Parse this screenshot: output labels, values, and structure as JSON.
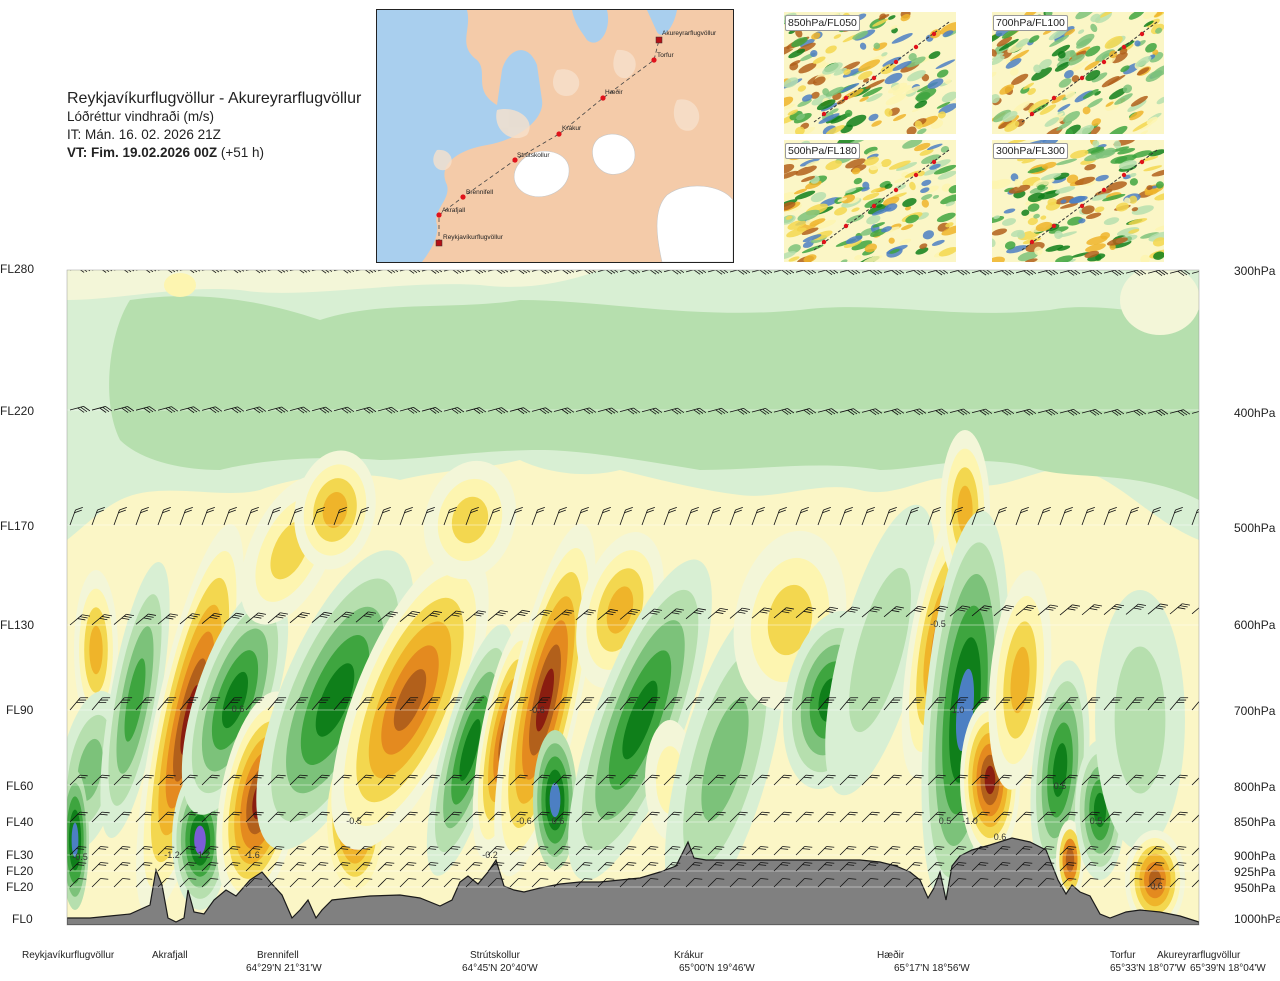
{
  "title": {
    "route": "Reykjavíkurflugvöllur - Akureyrarflugvöllur",
    "variable": "Lóðréttur vindhraði (m/s)",
    "issued": "IT: Mán. 16. 02. 2026 21Z",
    "valid_bold": "VT: Fim. 19.02.2026 00Z",
    "valid_offset": " (+51 h)"
  },
  "map": {
    "places": [
      "Akureyrarflugvöllur",
      "Torfur",
      "Hæðir",
      "Krákur",
      "Strútskollur",
      "Brennifell",
      "Akrafjall",
      "Reykjavíkurflugvöllur"
    ],
    "colors": {
      "sea": "#a8cfee",
      "land": "#f2c9a6",
      "glacier": "#ffffff",
      "route": "#444444",
      "point": "#e0121b"
    }
  },
  "mini_maps": [
    {
      "label": "850hPa/FL050"
    },
    {
      "label": "700hPa/FL100"
    },
    {
      "label": "500hPa/FL180"
    },
    {
      "label": "300hPa/FL300"
    }
  ],
  "axes": {
    "left_fl": [
      "FL280",
      "FL220",
      "FL170",
      "FL130",
      "FL90",
      "FL60",
      "FL40",
      "FL30",
      "FL20",
      "FL20",
      "FL0"
    ],
    "right_hpa": [
      "300hPa",
      "400hPa",
      "500hPa",
      "600hPa",
      "700hPa",
      "800hPa",
      "850hPa",
      "900hPa",
      "925hPa",
      "950hPa",
      "1000hPa"
    ]
  },
  "locations": [
    {
      "name": "Reykjavíkurflugvöllur",
      "coord": ""
    },
    {
      "name": "Akrafjall",
      "coord": ""
    },
    {
      "name": "Brennifell",
      "coord": "64°29'N 21°31'W"
    },
    {
      "name": "Strútskollur",
      "coord": "64°45'N 20°40'W"
    },
    {
      "name": "Krákur",
      "coord": "65°00'N 19°46'W"
    },
    {
      "name": "Hæðir",
      "coord": "65°17'N 18°56'W"
    },
    {
      "name": "Torfur",
      "coord": "65°33'N 18°07'W"
    },
    {
      "name": "Akureyrarflugvöllur",
      "coord": "65°39'N 18°04'W"
    }
  ],
  "contour_labels": [
    "-1.2",
    "1.2",
    "-1.6",
    "-0.5",
    "-0.6",
    "0.6",
    "-0.6",
    "0.6",
    "-0.2",
    "-0.5",
    "1.0",
    "0.5",
    "-1.0",
    "0.5",
    "0.5",
    "-0.6",
    "0.6",
    "-0.5"
  ],
  "chart_data": {
    "type": "heatmap",
    "title": "Lóðréttur vindhraði (m/s)",
    "xlabel": "",
    "ylabel": "",
    "y_levels_hpa": [
      300,
      400,
      500,
      600,
      700,
      800,
      850,
      900,
      925,
      950,
      1000
    ],
    "y_levels_fl": [
      "FL280",
      "FL220",
      "FL170",
      "FL130",
      "FL90",
      "FL60",
      "FL40",
      "FL30",
      "FL20",
      "FL20",
      "FL0"
    ],
    "x_locations": [
      "Reykjavíkurflugvöllur",
      "Akrafjall",
      "Brennifell",
      "Strútskollur",
      "Krákur",
      "Hæðir",
      "Torfur",
      "Akureyrarflugvöllur"
    ],
    "colorscale": [
      "#7b5cd6",
      "#4c7fc3",
      "#0f7f1a",
      "#3ea53f",
      "#7cc27a",
      "#b6dfae",
      "#d8efd3",
      "#f3f6d8",
      "#fdf5b0",
      "#f3d74f",
      "#efb42a",
      "#e48a1f",
      "#b2601b",
      "#8a1d10"
    ],
    "labeled_contours": [
      -1.6,
      -1.2,
      -1.0,
      -0.6,
      -0.5,
      -0.2,
      0.5,
      0.6,
      1.0,
      1.2
    ],
    "grid": true
  }
}
